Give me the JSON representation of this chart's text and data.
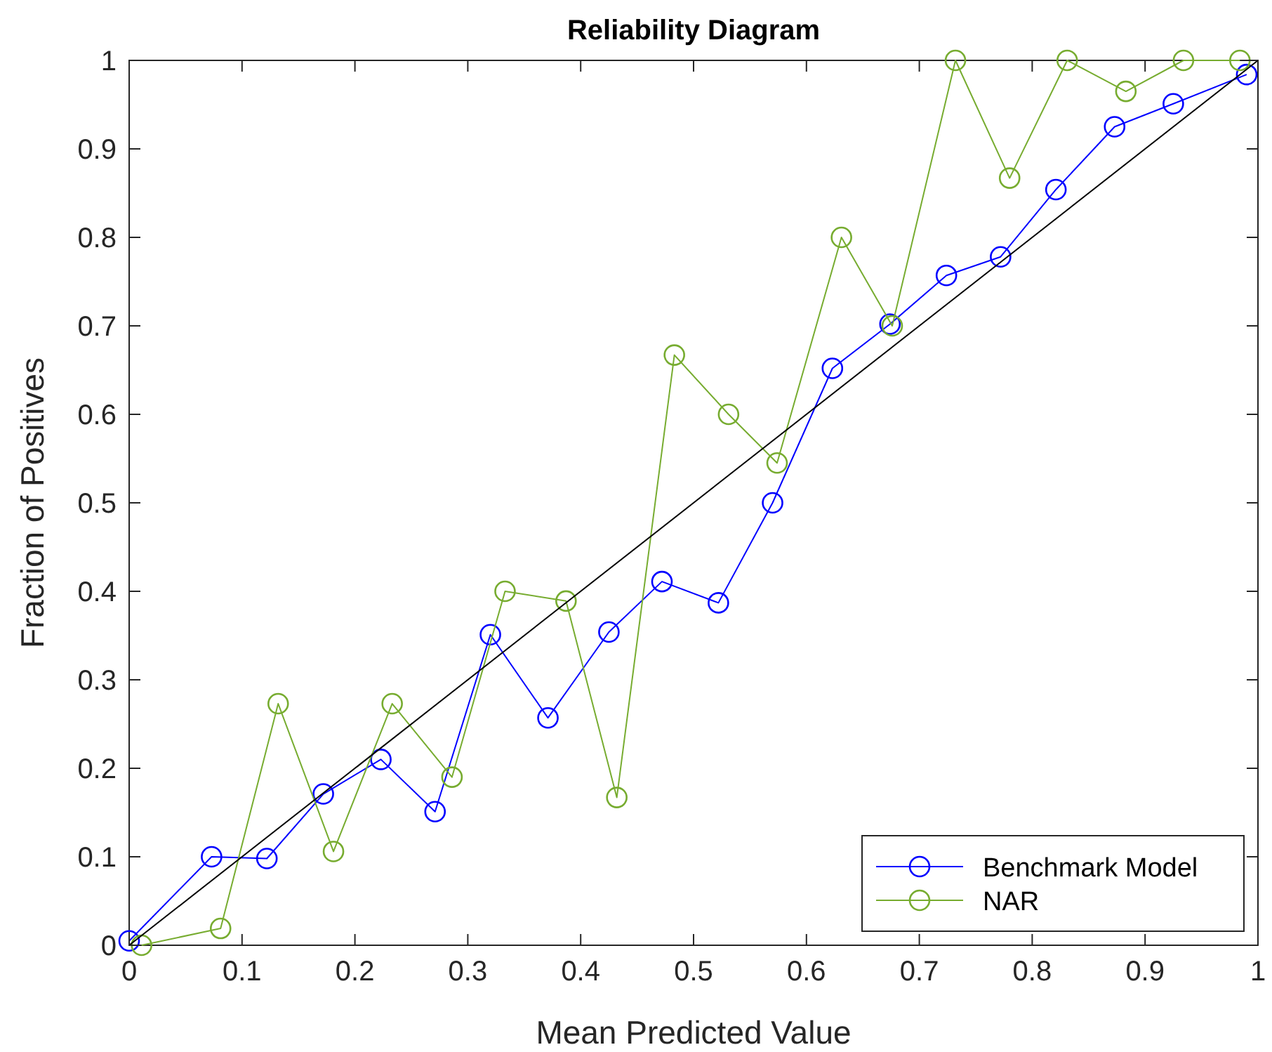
{
  "chart_data": {
    "type": "line",
    "title": "Reliability Diagram",
    "xlabel": "Mean Predicted Value",
    "ylabel": "Fraction of Positives",
    "xlim": [
      0,
      1
    ],
    "ylim": [
      0,
      1
    ],
    "xticks": [
      0,
      0.1,
      0.2,
      0.3,
      0.4,
      0.5,
      0.6,
      0.7,
      0.8,
      0.9,
      1
    ],
    "yticks": [
      0,
      0.1,
      0.2,
      0.3,
      0.4,
      0.5,
      0.6,
      0.7,
      0.8,
      0.9,
      1
    ],
    "grid": false,
    "legend": "bottom right",
    "marker": "circle",
    "series": [
      {
        "name": "Benchmark Model",
        "color": "#0000ff",
        "x": [
          0,
          0.073,
          0.122,
          0.172,
          0.223,
          0.271,
          0.32,
          0.371,
          0.425,
          0.472,
          0.522,
          0.57,
          0.623,
          0.674,
          0.724,
          0.772,
          0.821,
          0.873,
          0.925,
          0.99
        ],
        "values": [
          0.005,
          0.1,
          0.098,
          0.171,
          0.21,
          0.151,
          0.351,
          0.257,
          0.354,
          0.411,
          0.387,
          0.5,
          0.652,
          0.702,
          0.757,
          0.778,
          0.854,
          0.925,
          0.951,
          0.984
        ]
      },
      {
        "name": "NAR",
        "color": "#77ac30",
        "x": [
          0.011,
          0.081,
          0.132,
          0.181,
          0.233,
          0.286,
          0.333,
          0.387,
          0.432,
          0.483,
          0.531,
          0.574,
          0.631,
          0.676,
          0.732,
          0.78,
          0.831,
          0.883,
          0.934,
          0.984
        ],
        "values": [
          0,
          0.019,
          0.273,
          0.106,
          0.273,
          0.19,
          0.4,
          0.389,
          0.167,
          0.667,
          0.6,
          0.545,
          0.8,
          0.7,
          1,
          0.867,
          1,
          0.965,
          1,
          1
        ]
      },
      {
        "color": "#000000",
        "marker": "none",
        "x": [
          0,
          1
        ],
        "values": [
          0,
          1
        ]
      }
    ]
  }
}
